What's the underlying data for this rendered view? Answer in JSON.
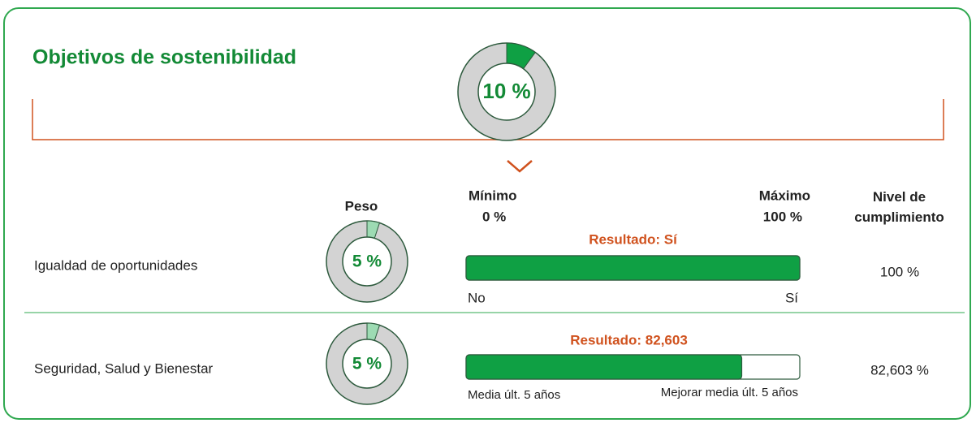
{
  "header": {
    "title": "Objetivos de sostenibilidad",
    "total": {
      "value": 10,
      "label": "10 %"
    }
  },
  "columns": {
    "weight": "Peso",
    "min": "Mínimo",
    "max": "Máximo",
    "level": "Nivel de cumplimiento"
  },
  "scale": {
    "min": {
      "value": 0,
      "label": "0 %"
    },
    "max": {
      "value": 100,
      "label": "100 %"
    }
  },
  "rows": [
    {
      "name": "Igualdad de oportunidades",
      "weight": {
        "value": 5,
        "label": "5 %"
      },
      "result": "Resultado: Sí",
      "left": "No",
      "right": "Sí",
      "level": {
        "value": 100,
        "label": "100 %"
      }
    },
    {
      "name": "Seguridad, Salud y Bienestar",
      "weight": {
        "value": 5,
        "label": "5 %"
      },
      "result": "Resultado: 82,603",
      "left": "Media últ. 5 años",
      "right": "Mejorar media últ. 5 años",
      "level": {
        "value": 82.603,
        "label": "82,603 %"
      }
    }
  ]
}
